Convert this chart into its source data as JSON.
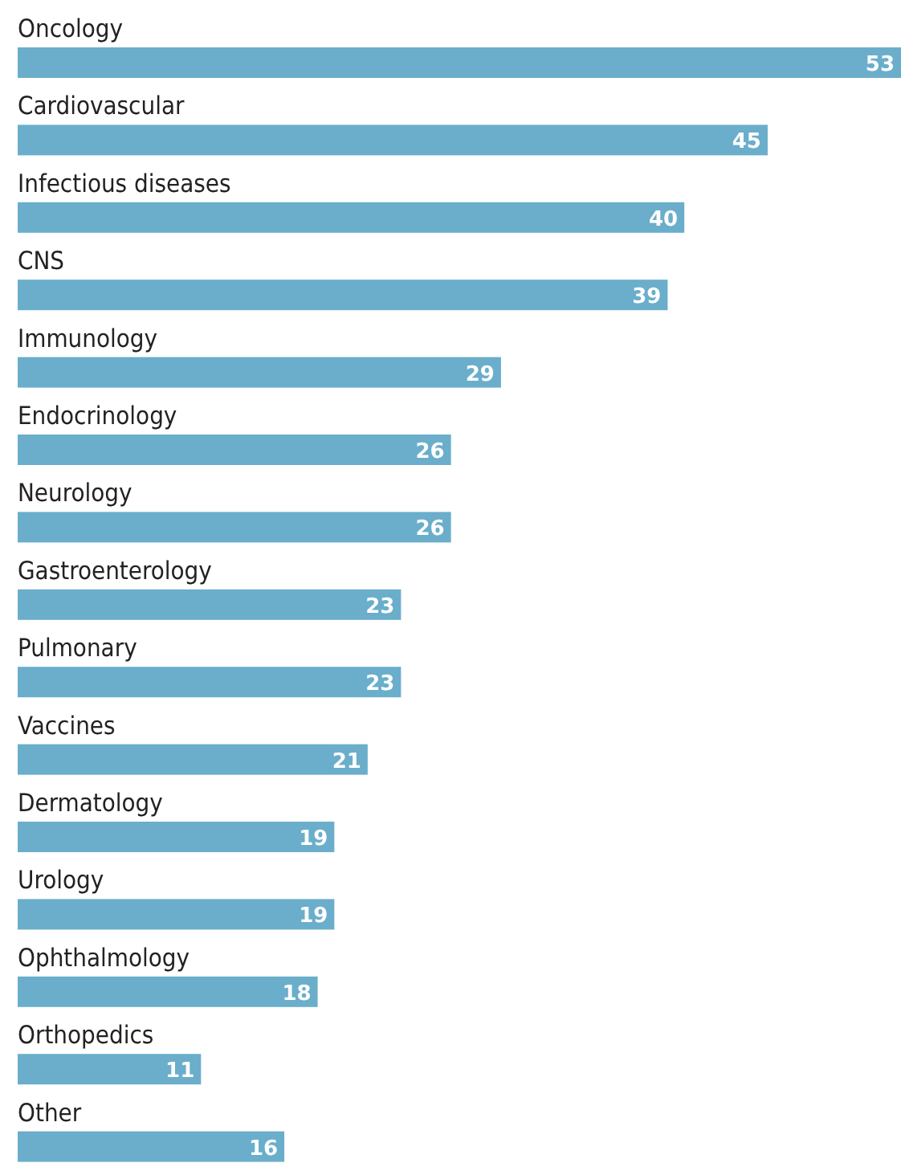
{
  "chart_data": {
    "type": "bar",
    "orientation": "horizontal",
    "categories": [
      "Oncology",
      "Cardiovascular",
      "Infectious diseases",
      "CNS",
      "Immunology",
      "Endocrinology",
      "Neurology",
      "Gastroenterology",
      "Pulmonary",
      "Vaccines",
      "Dermatology",
      "Urology",
      "Ophthalmology",
      "Orthopedics",
      "Other"
    ],
    "values": [
      53,
      45,
      40,
      39,
      29,
      26,
      26,
      23,
      23,
      21,
      19,
      19,
      18,
      11,
      16
    ],
    "color": "#6aaecb",
    "data_labels": true
  }
}
